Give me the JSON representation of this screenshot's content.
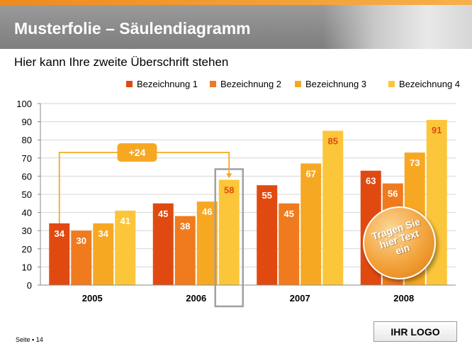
{
  "slide": {
    "title": "Musterfolie – Säulendiagramm",
    "subtitle": "Hier kann Ihre zweite Überschrift stehen",
    "page_label": "Seite ▪ 14",
    "logo_text": "IHR LOGO",
    "callout_text_lines": [
      "Tragen Sie",
      "hier Text",
      "ein"
    ],
    "delta_label": "+24"
  },
  "chart_data": {
    "type": "bar",
    "categories": [
      "2005",
      "2006",
      "2007",
      "2008"
    ],
    "series": [
      {
        "name": "Bezeichnung 1",
        "color": "#e04a10",
        "values": [
          34,
          45,
          55,
          63
        ]
      },
      {
        "name": "Bezeichnung 2",
        "color": "#f07a1e",
        "values": [
          30,
          38,
          45,
          56
        ]
      },
      {
        "name": "Bezeichnung 3",
        "color": "#f7a823",
        "values": [
          34,
          46,
          67,
          73
        ]
      },
      {
        "name": "Bezeichnung 4",
        "color": "#fcc63a",
        "values": [
          41,
          58,
          85,
          91
        ]
      }
    ],
    "ylim": [
      0,
      100
    ],
    "yticks": [
      0,
      10,
      20,
      30,
      40,
      50,
      60,
      70,
      80,
      90,
      100
    ],
    "grid": true,
    "legend": "top-right",
    "label_colors": {
      "inside": "#ffffff",
      "highlight": "#e04a10"
    }
  }
}
